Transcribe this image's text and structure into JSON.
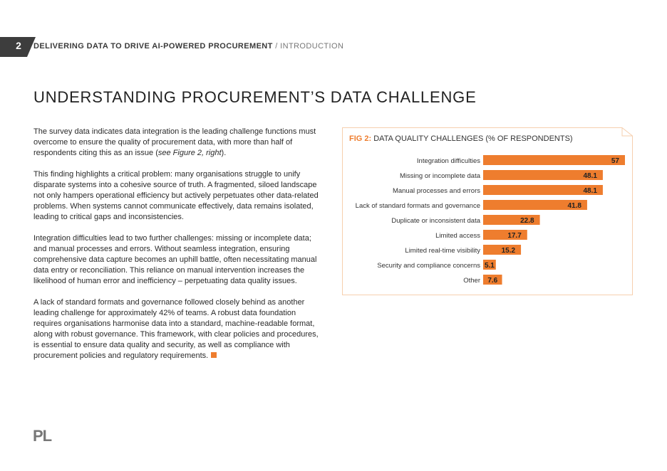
{
  "header": {
    "page_number": "2",
    "title": "DELIVERING DATA TO DRIVE AI-POWERED PROCUREMENT",
    "subtitle": "/ INTRODUCTION"
  },
  "title": "UNDERSTANDING PROCUREMENT’S DATA CHALLENGE",
  "paragraphs": [
    [
      "The survey data indicates data integration is the leading challenge functions must overcome to ensure the quality of procurement data, with more than half of respondents citing this as an issue (",
      "see Figure 2, right",
      ")."
    ],
    "This finding highlights a critical problem: many organisations struggle to unify disparate systems into a cohesive source of truth. A fragmented, siloed landscape not only hampers operational efficiency but actively perpetuates other data-related problems. When systems cannot communicate effectively, data remains isolated, leading to critical gaps and inconsistencies.",
    "Integration difficulties lead to two further challenges: missing or incomplete data; and manual processes and errors. Without seamless integration, ensuring comprehensive data capture becomes an uphill battle, often necessitating manual data entry or reconciliation. This reliance on manual intervention increases the likelihood of human error and inefficiency – perpetuating data quality issues.",
    "A lack of standard formats and governance followed closely behind as another leading challenge for approximately 42% of teams. A robust data foundation requires organisations harmonise data into a standard, machine-readable format, along with robust governance. This framework, with clear policies and procedures, is essential to ensure data quality and security, as well as compliance with procurement policies and regulatory requirements."
  ],
  "logo": "PL",
  "chart_data": {
    "type": "bar",
    "orientation": "horizontal",
    "title_prefix": "FIG 2:",
    "title": "DATA QUALITY CHALLENGES (% OF RESPONDENTS)",
    "categories": [
      "Integration difficulties",
      "Missing or incomplete data",
      "Manual processes and errors",
      "Lack of standard formats and governance",
      "Duplicate or inconsistent data",
      "Limited access",
      "Limited real-time visibility",
      "Security and compliance concerns",
      "Other"
    ],
    "values": [
      57,
      48.1,
      48.1,
      41.8,
      22.8,
      17.7,
      15.2,
      5.1,
      7.6
    ],
    "color": "#ee7d2e"
  }
}
